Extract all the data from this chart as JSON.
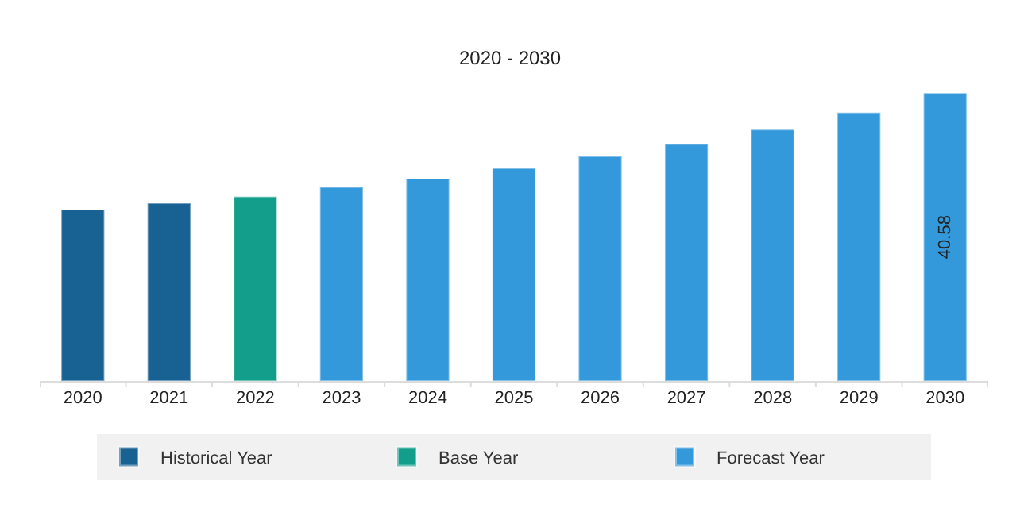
{
  "chart_data": {
    "type": "bar",
    "title": "2020 - 2030",
    "categories": [
      "2020",
      "2021",
      "2022",
      "2023",
      "2024",
      "2025",
      "2026",
      "2027",
      "2028",
      "2029",
      "2030"
    ],
    "series": [
      {
        "name": "Historical Year",
        "color": "#176293",
        "values": [
          24.15,
          25.06,
          null,
          null,
          null,
          null,
          null,
          null,
          null,
          null,
          null
        ]
      },
      {
        "name": "Base Year",
        "color": "#129e8a",
        "values": [
          null,
          null,
          25.97,
          null,
          null,
          null,
          null,
          null,
          null,
          null,
          null
        ]
      },
      {
        "name": "Forecast Year",
        "color": "#3499da",
        "values": [
          null,
          null,
          null,
          27.33,
          28.54,
          29.99,
          31.65,
          33.4,
          35.44,
          37.85,
          40.58
        ],
        "value_labels": [
          null,
          null,
          null,
          null,
          null,
          null,
          null,
          null,
          null,
          null,
          "40.58"
        ]
      }
    ],
    "legend": "bottom"
  }
}
